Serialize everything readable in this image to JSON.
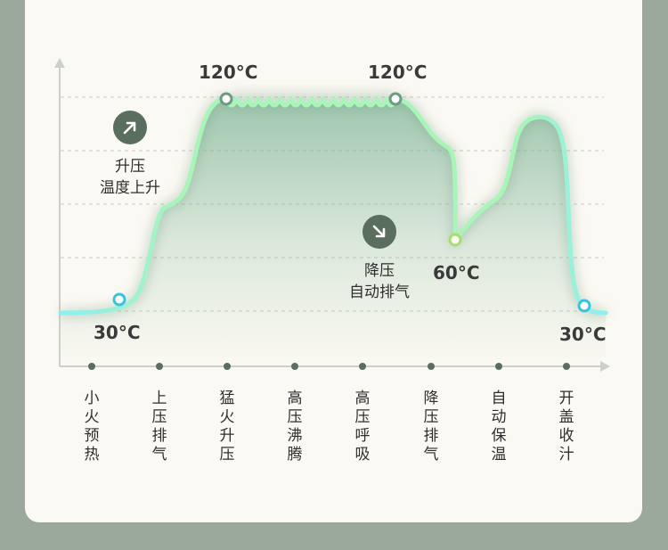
{
  "chart_data": {
    "type": "line",
    "title": "",
    "xlabel": "",
    "ylabel": "",
    "stages": [
      "小火预热",
      "上压排气",
      "猛火升压",
      "高压沸腾",
      "高压呼吸",
      "降压排气",
      "自动保温",
      "开盖收汁"
    ],
    "points_labels": [
      {
        "text": "30°C",
        "value": 30
      },
      {
        "text": "120°C",
        "value": 120
      },
      {
        "text": "120°C",
        "value": 120
      },
      {
        "text": "60°C",
        "value": 60
      },
      {
        "text": "30°C",
        "value": 30
      }
    ],
    "annotations": [
      {
        "icon": "arrow-up-right-icon",
        "lines": [
          "升压",
          "温度上升"
        ]
      },
      {
        "icon": "arrow-down-right-icon",
        "lines": [
          "降压",
          "自动排气"
        ]
      }
    ],
    "grid": true,
    "colors": {
      "line_start": "#8feef0",
      "line_mid": "#a8f5b8",
      "line_dark": "#6f9a82",
      "fill": "#7fb596",
      "marker_cyan": "#39c3df",
      "marker_green": "#a6df6a",
      "axis": "#cdd0c8",
      "grid": "#c8cac4",
      "dot": "#5a6e5e",
      "icon_bg": "#5a6e5e"
    }
  }
}
